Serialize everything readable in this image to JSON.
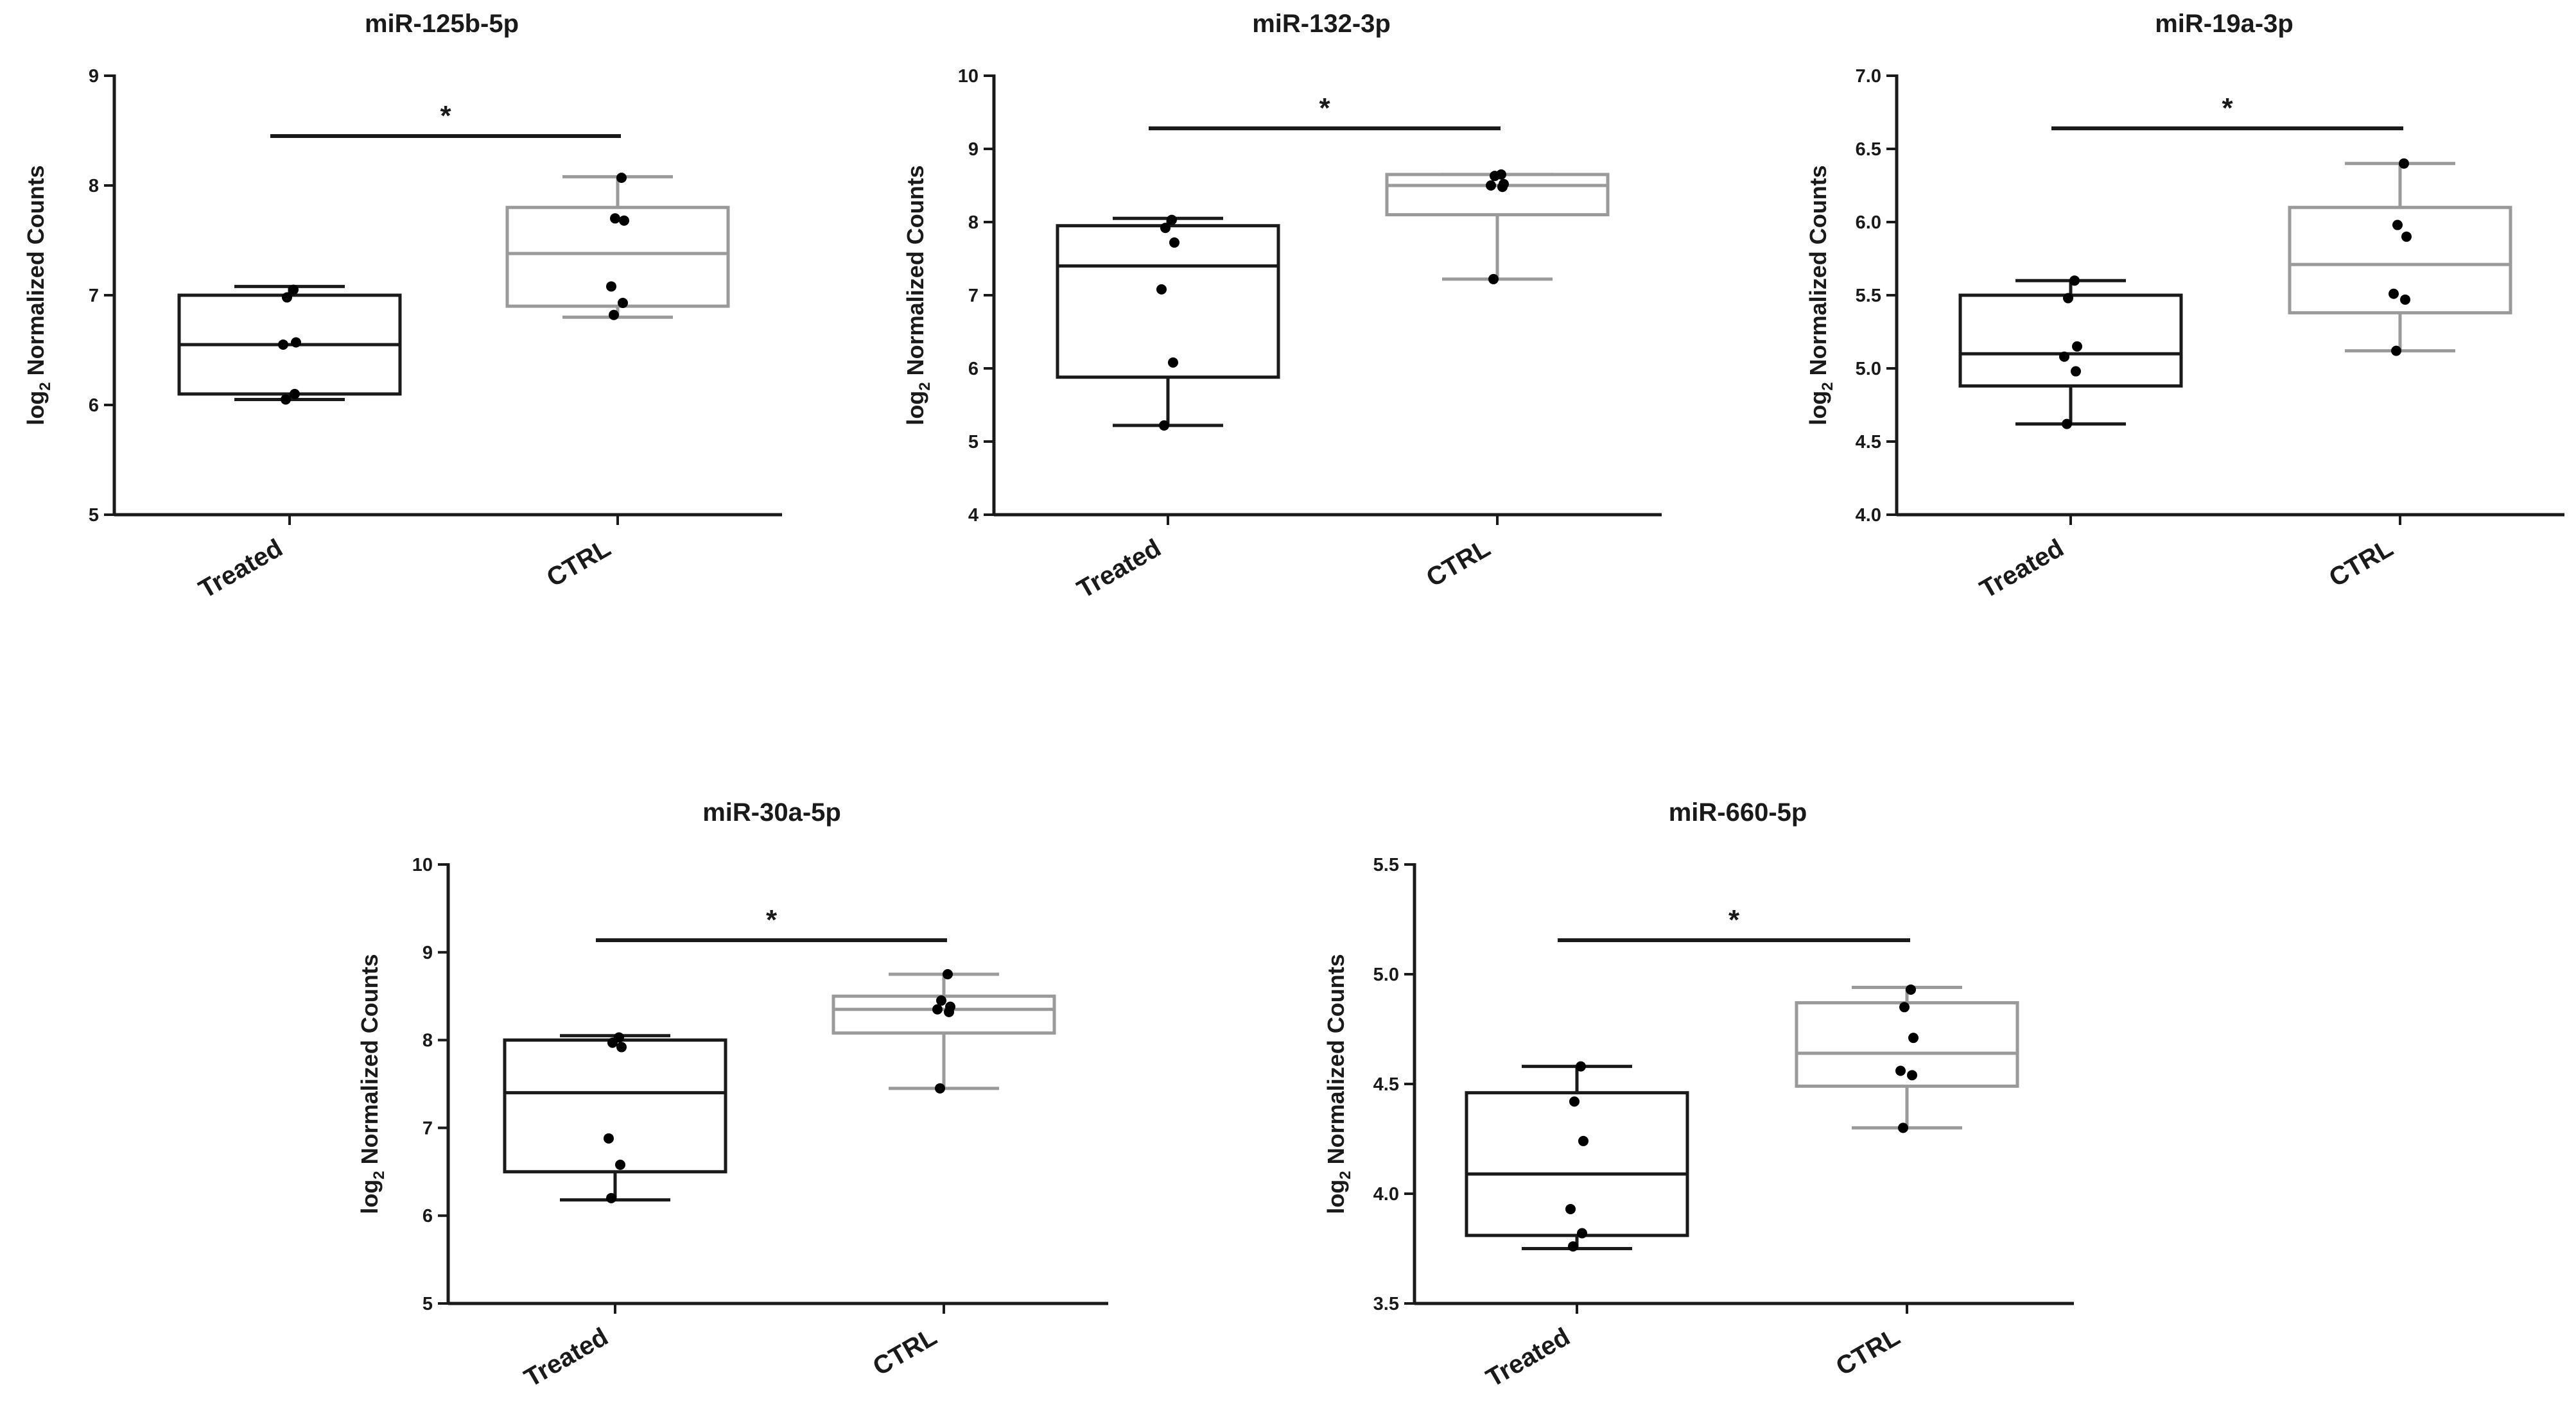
{
  "colors": {
    "treated": "#1a1a1a",
    "ctrl": "#9a9a9a",
    "point": "#000000",
    "axis": "#1a1a1a"
  },
  "chart_data": [
    {
      "type": "box",
      "title": "miR-125b-5p",
      "ylabel": {
        "prefix": "log",
        "sub": "2",
        "suffix": " Normalized Counts"
      },
      "ylim": [
        5,
        9
      ],
      "yticks": [
        "5",
        "6",
        "7",
        "8",
        "9"
      ],
      "categories": [
        "Treated",
        "CTRL"
      ],
      "significance": "*",
      "groups": [
        {
          "name": "Treated",
          "whisker_low": 6.05,
          "q1": 6.1,
          "median": 6.55,
          "q3": 7.0,
          "whisker_high": 7.08,
          "points": [
            6.05,
            6.1,
            6.55,
            6.57,
            6.98,
            7.05
          ]
        },
        {
          "name": "CTRL",
          "whisker_low": 6.8,
          "q1": 6.9,
          "median": 7.38,
          "q3": 7.8,
          "whisker_high": 8.08,
          "points": [
            6.82,
            6.93,
            7.08,
            7.68,
            7.7,
            8.07
          ]
        }
      ]
    },
    {
      "type": "box",
      "title": "miR-132-3p",
      "ylabel": {
        "prefix": "log",
        "sub": "2",
        "suffix": " Normalized Counts"
      },
      "ylim": [
        4,
        10
      ],
      "yticks": [
        "4",
        "5",
        "6",
        "7",
        "8",
        "9",
        "10"
      ],
      "categories": [
        "Treated",
        "CTRL"
      ],
      "significance": "*",
      "groups": [
        {
          "name": "Treated",
          "whisker_low": 5.22,
          "q1": 5.88,
          "median": 7.4,
          "q3": 7.95,
          "whisker_high": 8.05,
          "points": [
            5.22,
            6.08,
            7.08,
            7.72,
            7.92,
            8.03
          ]
        },
        {
          "name": "CTRL",
          "whisker_low": 7.22,
          "q1": 8.1,
          "median": 8.5,
          "q3": 8.65,
          "whisker_high": 8.65,
          "points": [
            7.22,
            8.48,
            8.5,
            8.52,
            8.63,
            8.65
          ]
        }
      ]
    },
    {
      "type": "box",
      "title": "miR-19a-3p",
      "ylabel": {
        "prefix": "log",
        "sub": "2",
        "suffix": " Normalized Counts"
      },
      "ylim": [
        4.0,
        7.0
      ],
      "yticks": [
        "4.0",
        "4.5",
        "5.0",
        "5.5",
        "6.0",
        "6.5",
        "7.0"
      ],
      "categories": [
        "Treated",
        "CTRL"
      ],
      "significance": "*",
      "groups": [
        {
          "name": "Treated",
          "whisker_low": 4.62,
          "q1": 4.88,
          "median": 5.1,
          "q3": 5.5,
          "whisker_high": 5.6,
          "points": [
            4.62,
            4.98,
            5.08,
            5.15,
            5.48,
            5.6
          ]
        },
        {
          "name": "CTRL",
          "whisker_low": 5.12,
          "q1": 5.38,
          "median": 5.71,
          "q3": 6.1,
          "whisker_high": 6.4,
          "points": [
            5.12,
            5.47,
            5.51,
            5.9,
            5.98,
            6.4
          ]
        }
      ]
    },
    {
      "type": "box",
      "title": "miR-30a-5p",
      "ylabel": {
        "prefix": "log",
        "sub": "2",
        "suffix": " Normalized Counts"
      },
      "ylim": [
        5,
        10
      ],
      "yticks": [
        "5",
        "6",
        "7",
        "8",
        "9",
        "10"
      ],
      "categories": [
        "Treated",
        "CTRL"
      ],
      "significance": "*",
      "groups": [
        {
          "name": "Treated",
          "whisker_low": 6.18,
          "q1": 6.5,
          "median": 7.4,
          "q3": 8.0,
          "whisker_high": 8.05,
          "points": [
            6.2,
            6.58,
            6.88,
            7.92,
            7.97,
            8.03
          ]
        },
        {
          "name": "CTRL",
          "whisker_low": 7.45,
          "q1": 8.08,
          "median": 8.35,
          "q3": 8.5,
          "whisker_high": 8.75,
          "points": [
            7.45,
            8.32,
            8.35,
            8.38,
            8.45,
            8.75
          ]
        }
      ]
    },
    {
      "type": "box",
      "title": "miR-660-5p",
      "ylabel": {
        "prefix": "log",
        "sub": "2",
        "suffix": " Normalized Counts"
      },
      "ylim": [
        3.5,
        5.5
      ],
      "yticks": [
        "3.5",
        "4.0",
        "4.5",
        "5.0",
        "5.5"
      ],
      "categories": [
        "Treated",
        "CTRL"
      ],
      "significance": "*",
      "groups": [
        {
          "name": "Treated",
          "whisker_low": 3.75,
          "q1": 3.81,
          "median": 4.09,
          "q3": 4.46,
          "whisker_high": 4.58,
          "points": [
            3.76,
            3.82,
            3.93,
            4.24,
            4.42,
            4.58
          ]
        },
        {
          "name": "CTRL",
          "whisker_low": 4.3,
          "q1": 4.49,
          "median": 4.64,
          "q3": 4.87,
          "whisker_high": 4.94,
          "points": [
            4.3,
            4.54,
            4.56,
            4.71,
            4.85,
            4.93
          ]
        }
      ]
    }
  ]
}
